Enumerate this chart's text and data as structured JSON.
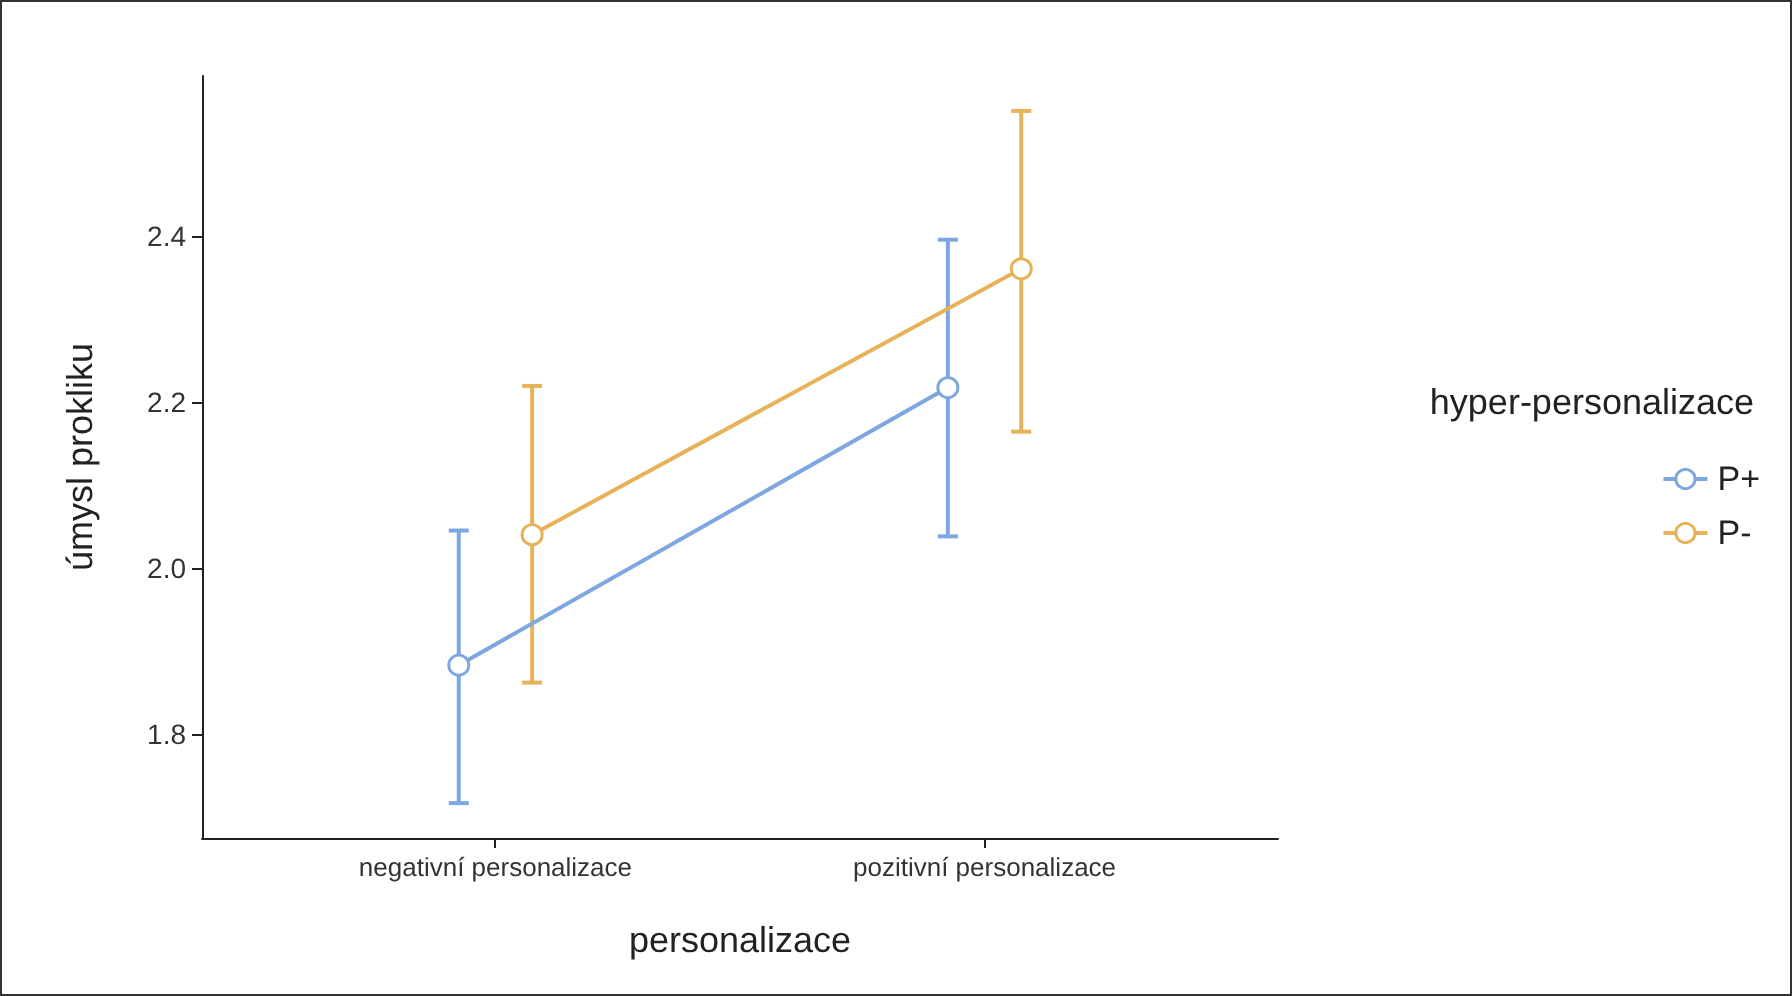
{
  "chart_data": {
    "type": "line",
    "xlabel": "personalizace",
    "ylabel": "úmysl prokliku",
    "legend_title": "hyper-personalizace",
    "categories": [
      "negativní personalizace",
      "pozitivní personalizace"
    ],
    "series": [
      {
        "name": "P+",
        "color": "#7ea6e0",
        "values": [
          1.883,
          2.217
        ],
        "errors": [
          [
            1.717,
            2.045
          ],
          [
            2.038,
            2.395
          ]
        ]
      },
      {
        "name": "P-",
        "color": "#e6b35a",
        "values": [
          2.04,
          2.36
        ],
        "errors": [
          [
            1.862,
            2.219
          ],
          [
            2.164,
            2.55
          ]
        ]
      }
    ],
    "ylim": [
      1.675,
      2.592
    ],
    "yticks": [
      1.8,
      {
        "value": 2,
        "label": "2.0"
      },
      2.2,
      2.4
    ],
    "marker": "circle",
    "line_style": "solid",
    "legend": "right",
    "grid": false
  }
}
